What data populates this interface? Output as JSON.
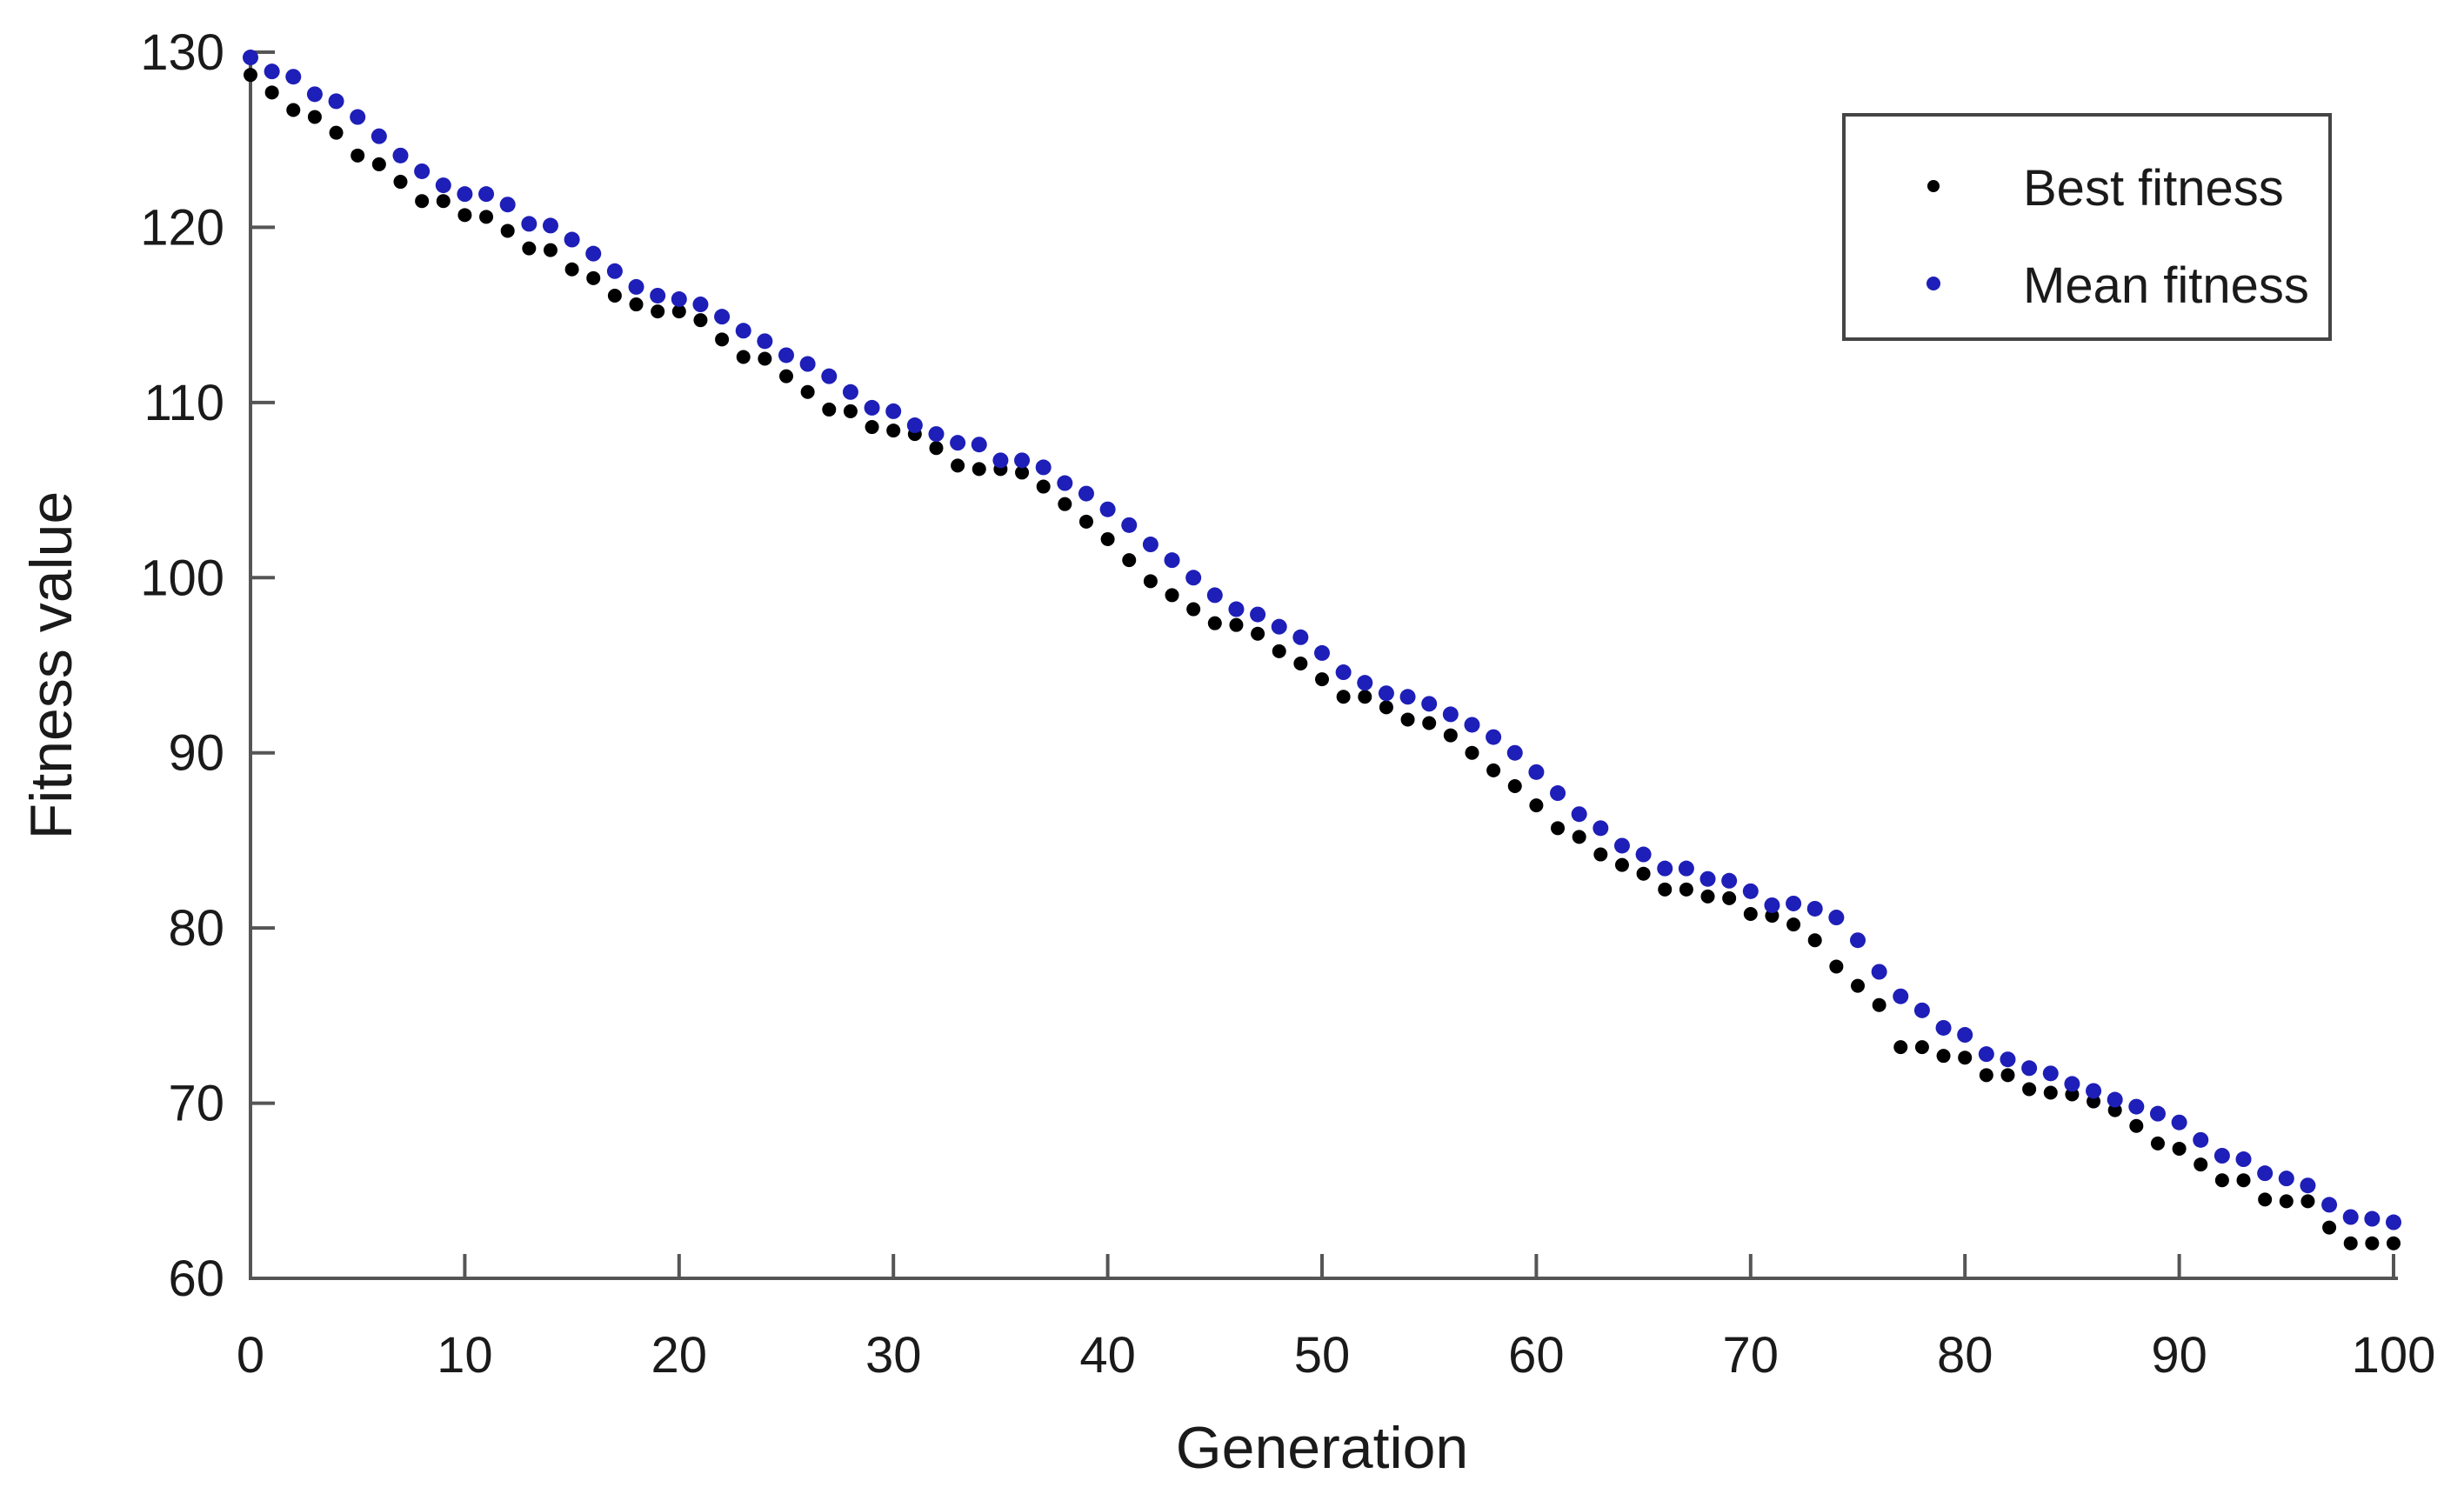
{
  "figure": {
    "background": "#ffffff",
    "axis_color": "#555555",
    "legend_border_color": "#444444",
    "text_color": "#1a1a1a"
  },
  "chart_data": {
    "type": "scatter",
    "title": "",
    "xlabel": "Generation",
    "ylabel": "Fitness value",
    "xlim": [
      0,
      100
    ],
    "ylim": [
      60,
      130
    ],
    "xticks": [
      0,
      10,
      20,
      30,
      40,
      50,
      60,
      70,
      80,
      90,
      100
    ],
    "yticks": [
      60,
      70,
      80,
      90,
      100,
      110,
      120,
      130
    ],
    "grid": false,
    "legend_position": "top-right",
    "x": [
      0,
      1,
      2,
      3,
      4,
      5,
      6,
      7,
      8,
      9,
      10,
      11,
      12,
      13,
      14,
      15,
      16,
      17,
      18,
      19,
      20,
      21,
      22,
      23,
      24,
      25,
      26,
      27,
      28,
      29,
      30,
      31,
      32,
      33,
      34,
      35,
      36,
      37,
      38,
      39,
      40,
      41,
      42,
      43,
      44,
      45,
      46,
      47,
      48,
      49,
      50,
      51,
      52,
      53,
      54,
      55,
      56,
      57,
      58,
      59,
      60,
      61,
      62,
      63,
      64,
      65,
      66,
      67,
      68,
      69,
      70,
      71,
      72,
      73,
      74,
      75,
      76,
      77,
      78,
      79,
      80,
      81,
      82,
      83,
      84,
      85,
      86,
      87,
      88,
      89,
      90,
      91,
      92,
      93,
      94,
      95,
      96,
      97,
      98,
      99,
      100
    ],
    "series": [
      {
        "name": "Best fitness",
        "color": "#000000",
        "marker": "dot",
        "values": [
          128.7,
          127.7,
          126.7,
          126.3,
          125.4,
          124.1,
          123.6,
          122.6,
          121.5,
          121.5,
          120.7,
          120.6,
          119.8,
          118.8,
          118.7,
          117.6,
          117.1,
          116.1,
          115.6,
          115.2,
          115.2,
          114.7,
          113.6,
          112.6,
          112.5,
          111.5,
          110.6,
          109.6,
          109.5,
          108.6,
          108.4,
          108.2,
          107.4,
          106.4,
          106.2,
          106.2,
          106.0,
          105.2,
          104.2,
          103.2,
          102.2,
          101.0,
          99.8,
          99.0,
          98.2,
          97.4,
          97.3,
          96.8,
          95.8,
          95.1,
          94.2,
          93.2,
          93.2,
          92.6,
          91.9,
          91.7,
          91.0,
          90.0,
          89.0,
          88.1,
          87.0,
          85.7,
          85.2,
          84.2,
          83.6,
          83.1,
          82.2,
          82.2,
          81.8,
          81.7,
          80.8,
          80.7,
          80.2,
          79.3,
          77.8,
          76.7,
          75.6,
          73.2,
          73.2,
          72.7,
          72.6,
          71.6,
          71.6,
          70.8,
          70.6,
          70.5,
          70.1,
          69.6,
          68.7,
          67.7,
          67.4,
          66.5,
          65.6,
          65.6,
          64.5,
          64.4,
          64.4,
          62.9,
          62.0,
          62.0,
          62.0
        ]
      },
      {
        "name": "Mean fitness",
        "color": "#1e1eb8",
        "marker": "dot",
        "values": [
          129.7,
          128.9,
          128.6,
          127.6,
          127.2,
          126.3,
          125.2,
          124.1,
          123.2,
          122.4,
          121.9,
          121.9,
          121.3,
          120.2,
          120.1,
          119.3,
          118.5,
          117.5,
          116.6,
          116.1,
          115.9,
          115.6,
          114.9,
          114.1,
          113.5,
          112.7,
          112.2,
          111.5,
          110.6,
          109.7,
          109.5,
          108.7,
          108.2,
          107.7,
          107.6,
          106.7,
          106.7,
          106.3,
          105.4,
          104.8,
          103.9,
          103.0,
          101.9,
          101.0,
          100.0,
          99.0,
          98.2,
          97.9,
          97.2,
          96.6,
          95.7,
          94.6,
          94.0,
          93.4,
          93.2,
          92.8,
          92.2,
          91.6,
          90.9,
          90.0,
          88.9,
          87.7,
          86.5,
          85.7,
          84.7,
          84.2,
          83.4,
          83.4,
          82.8,
          82.7,
          82.1,
          81.3,
          81.4,
          81.1,
          80.6,
          79.3,
          77.5,
          76.1,
          75.3,
          74.3,
          73.9,
          72.8,
          72.5,
          72.0,
          71.7,
          71.1,
          70.7,
          70.2,
          69.8,
          69.4,
          68.9,
          67.9,
          67.0,
          66.8,
          66.0,
          65.7,
          65.3,
          64.2,
          63.5,
          63.4,
          63.2
        ]
      }
    ]
  }
}
